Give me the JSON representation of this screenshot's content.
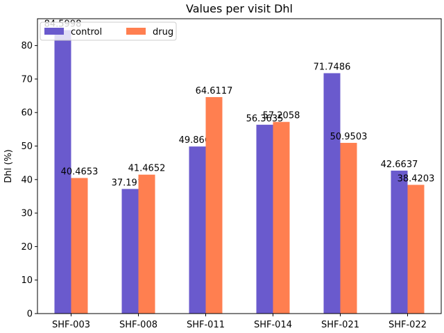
{
  "chart_data": {
    "type": "bar",
    "title": "Values per visit Dhl",
    "xlabel": "",
    "ylabel": "Dhl (%)",
    "ylim": [
      0,
      88
    ],
    "yticks": [
      0,
      10,
      20,
      30,
      40,
      50,
      60,
      70,
      80
    ],
    "categories": [
      "SHF-003",
      "SHF-008",
      "SHF-011",
      "SHF-014",
      "SHF-021",
      "SHF-022"
    ],
    "series": [
      {
        "name": "control",
        "color": "#6a5acd",
        "values": [
          84.5998,
          37.1918,
          49.8661,
          56.3635,
          71.7486,
          42.6637
        ],
        "labels": [
          "84.5998",
          "37.1918",
          "49.8661",
          "56.3635",
          "71.7486",
          "42.6637"
        ]
      },
      {
        "name": "drug",
        "color": "#ff7f50",
        "values": [
          40.4653,
          41.4652,
          64.6117,
          57.2058,
          50.9503,
          38.4203
        ],
        "labels": [
          "40.4653",
          "41.4652",
          "64.6117",
          "57.2058",
          "50.9503",
          "38.4203"
        ]
      }
    ],
    "legend": {
      "placement": "top-left",
      "columns": 2
    },
    "grid": false
  }
}
